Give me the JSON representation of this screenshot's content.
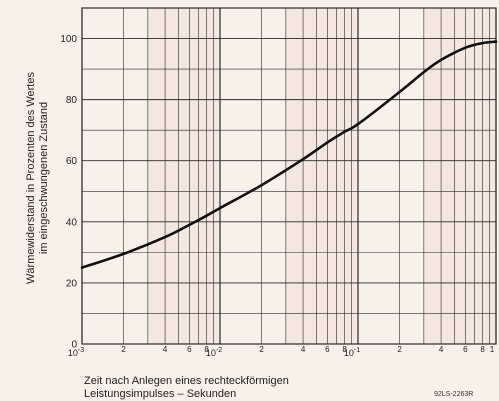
{
  "chart_data": {
    "type": "line",
    "xscale": "log",
    "xlim": [
      0.001,
      1
    ],
    "ylim": [
      0,
      110
    ],
    "grid": true,
    "xlabel_lines": [
      "Zeit nach Anlegen eines rechteckförmigen",
      "Leistungsimpulses – Sekunden"
    ],
    "ylabel_lines": [
      "Wärmewiderstand in Prozenten des Wertes",
      "im eingeschwungenen Zustand"
    ],
    "y_ticks": [
      {
        "value": 0,
        "label": "0"
      },
      {
        "value": 20,
        "label": "20"
      },
      {
        "value": 40,
        "label": "40"
      },
      {
        "value": 60,
        "label": "60"
      },
      {
        "value": 80,
        "label": "80"
      },
      {
        "value": 100,
        "label": "100"
      }
    ],
    "x_ticks": [
      {
        "value": 0.001,
        "base": "10",
        "exp": "-3"
      },
      {
        "value": 0.002,
        "label": "2"
      },
      {
        "value": 0.004,
        "label": "4"
      },
      {
        "value": 0.006,
        "label": "6"
      },
      {
        "value": 0.008,
        "label": "8"
      },
      {
        "value": 0.01,
        "base": "10",
        "exp": "-2"
      },
      {
        "value": 0.02,
        "label": "2"
      },
      {
        "value": 0.04,
        "label": "4"
      },
      {
        "value": 0.06,
        "label": "6"
      },
      {
        "value": 0.08,
        "label": "8"
      },
      {
        "value": 0.1,
        "base": "10",
        "exp": "-1"
      },
      {
        "value": 0.2,
        "label": "2"
      },
      {
        "value": 0.4,
        "label": "4"
      },
      {
        "value": 0.6,
        "label": "6"
      },
      {
        "value": 0.8,
        "label": "8"
      },
      {
        "value": 1,
        "label": "1"
      }
    ],
    "series": [
      {
        "x": [
          0.001,
          0.002,
          0.004,
          0.006,
          0.008,
          0.01,
          0.02,
          0.04,
          0.06,
          0.08,
          0.1,
          0.2,
          0.3,
          0.4,
          0.6,
          0.8,
          1
        ],
        "y": [
          25,
          29.5,
          35,
          39,
          42,
          44.5,
          52,
          60.5,
          66,
          69.5,
          72,
          82.5,
          89,
          93,
          97,
          98.5,
          99
        ]
      }
    ],
    "reference_code": "92LS-2263R"
  },
  "colors": {
    "background": "#f7f1ea",
    "shade": "#efdcd2",
    "grid": "#2a2a2a",
    "curve": "#111111"
  }
}
